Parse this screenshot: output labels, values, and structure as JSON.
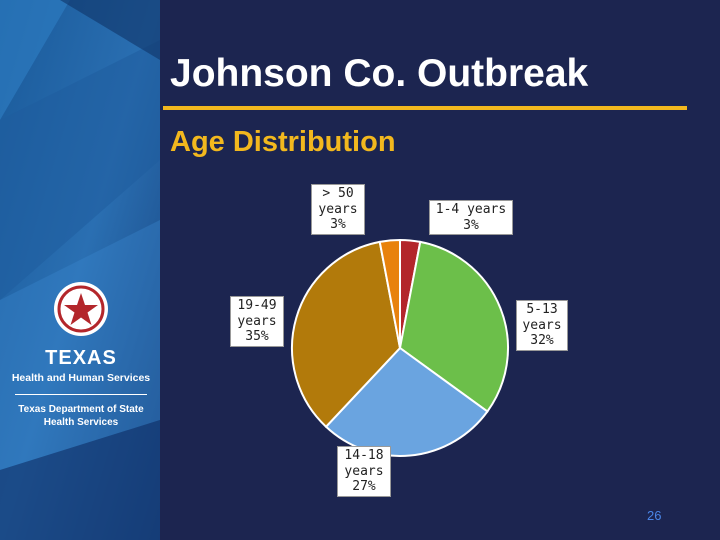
{
  "slide": {
    "title": "Johnson Co. Outbreak",
    "subtitle": "Age Distribution",
    "page_number": "26"
  },
  "logo": {
    "icon": "texas-star-seal-icon",
    "name": "TEXAS",
    "line1": "Health and Human Services",
    "line2a": "Texas Department of State",
    "line2b": "Health Services"
  },
  "chart_data": {
    "type": "pie",
    "title": "",
    "slices": [
      {
        "label": "1-4 years\n3%",
        "value": 3,
        "color": "#b3262b"
      },
      {
        "label": "5-13\nyears\n32%",
        "value": 32,
        "color": "#6cbf4a"
      },
      {
        "label": "14-18\nyears\n27%",
        "value": 27,
        "color": "#6aa4e0"
      },
      {
        "label": "19-49\nyears\n35%",
        "value": 35,
        "color": "#b27a0b"
      },
      {
        "label": "> 50\nyears\n3%",
        "value": 3,
        "color": "#e8820c"
      }
    ]
  }
}
